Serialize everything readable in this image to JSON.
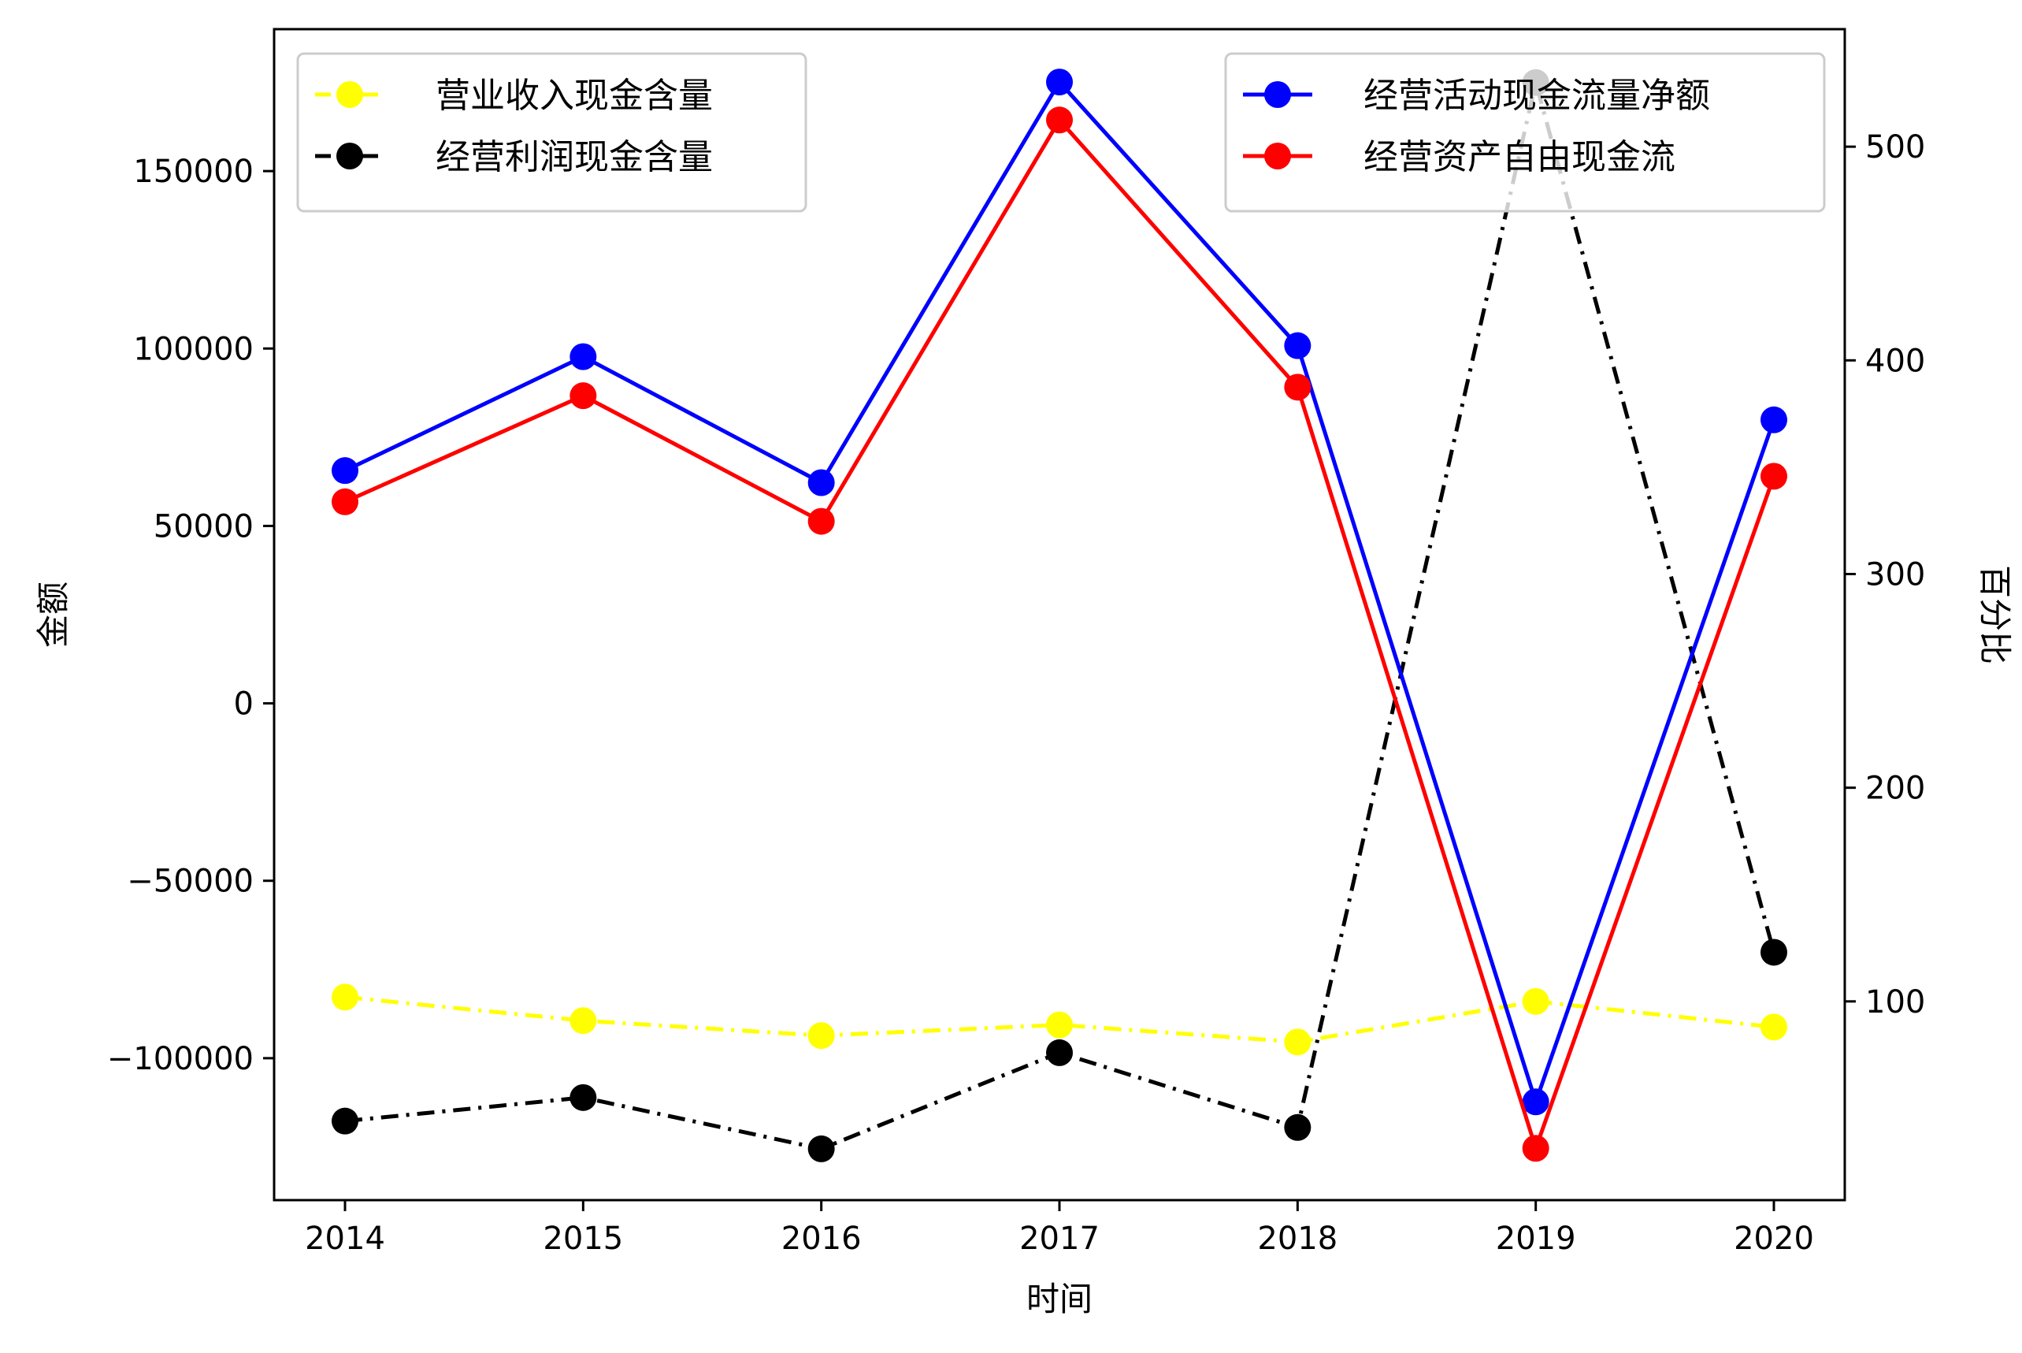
{
  "chart_data": {
    "type": "line",
    "title": "",
    "x": [
      "2014",
      "2015",
      "2016",
      "2017",
      "2018",
      "2019",
      "2020"
    ],
    "xlabel": "时间",
    "ylabel_left": "金额",
    "ylabel_right": "百分比",
    "ylim_left": [
      -140000,
      190000
    ],
    "ylim_right": [
      7,
      555
    ],
    "yticks_left": [
      -100000,
      -50000,
      0,
      50000,
      100000,
      150000
    ],
    "yticks_right": [
      100,
      200,
      300,
      400,
      500
    ],
    "grid": false,
    "series": [
      {
        "name": "经营活动现金流量净额",
        "axis": "left",
        "color": "#0000ff",
        "linestyle": "solid",
        "values": [
          65600,
          97700,
          62200,
          175100,
          100800,
          -112300,
          79900
        ]
      },
      {
        "name": "经营资产自由现金流",
        "axis": "left",
        "color": "#ff0000",
        "linestyle": "solid",
        "values": [
          56800,
          86700,
          51300,
          164400,
          89100,
          -125400,
          64000
        ]
      },
      {
        "name": "营业收入现金含量",
        "axis": "right",
        "color": "#ffff00",
        "linestyle": "dashdot",
        "values": [
          102,
          91,
          84,
          89,
          81,
          100,
          88
        ]
      },
      {
        "name": "经营利润现金含量",
        "axis": "right",
        "color": "#000000",
        "linestyle": "dashdot",
        "values": [
          44,
          55,
          31,
          76,
          41,
          530,
          123
        ]
      }
    ],
    "legends": [
      {
        "position": "top-left",
        "series": [
          2,
          3
        ]
      },
      {
        "position": "top-right",
        "series": [
          0,
          1
        ]
      }
    ]
  }
}
